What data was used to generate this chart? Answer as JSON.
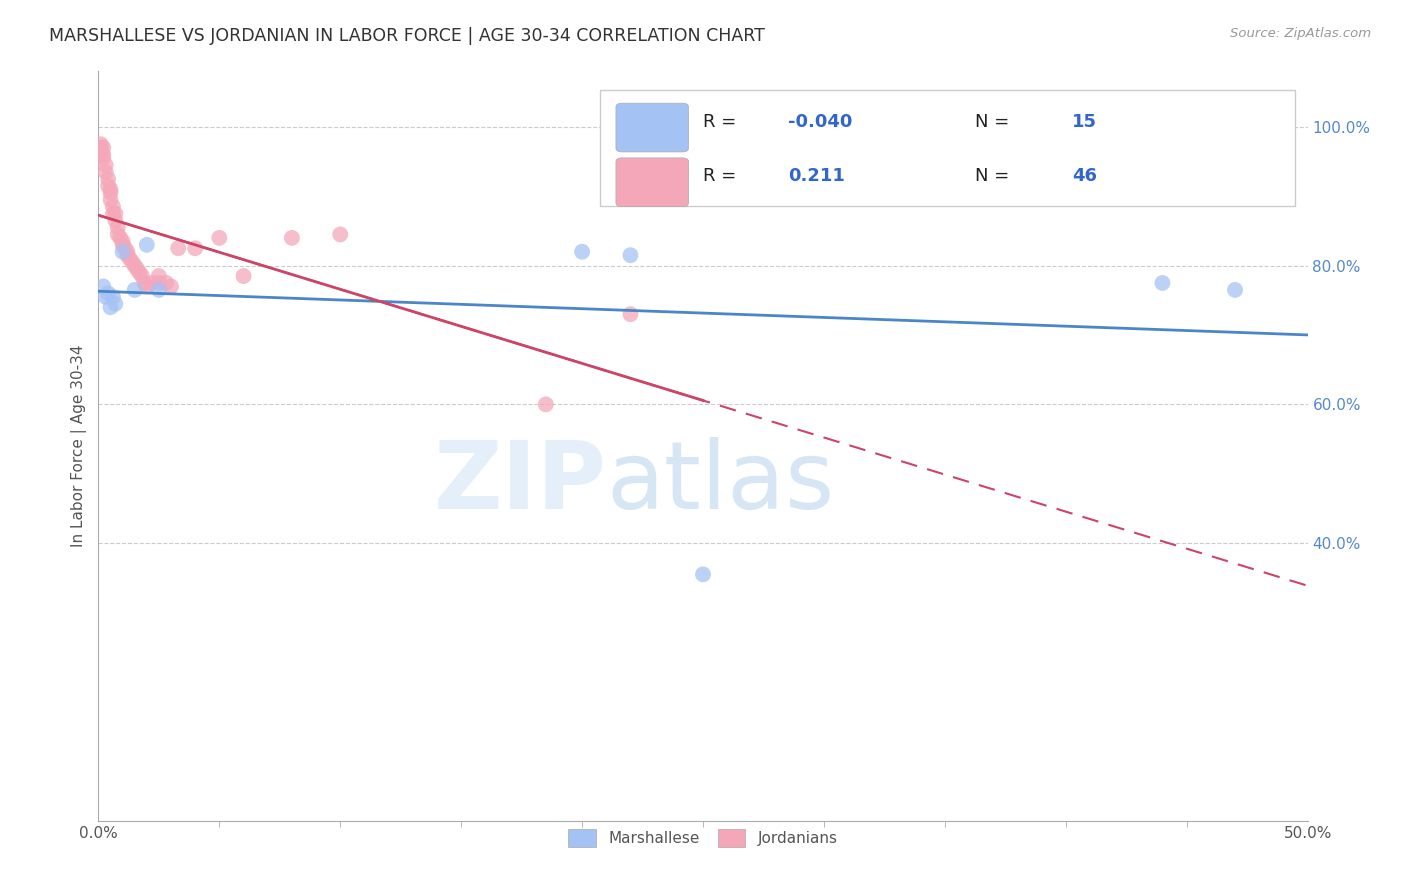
{
  "title": "MARSHALLESE VS JORDANIAN IN LABOR FORCE | AGE 30-34 CORRELATION CHART",
  "source": "Source: ZipAtlas.com",
  "ylabel": "In Labor Force | Age 30-34",
  "xlim": [
    0.0,
    0.5
  ],
  "ylim": [
    0.0,
    1.08
  ],
  "legend_labels": [
    "Marshallese",
    "Jordanians"
  ],
  "legend_r": [
    "-0.040",
    "0.211"
  ],
  "legend_n": [
    "15",
    "46"
  ],
  "blue_color": "#a4c2f4",
  "pink_color": "#f4a7b9",
  "blue_line_color": "#4a86c8",
  "pink_line_color": "#cc4466",
  "blue_scatter_x": [
    0.002,
    0.003,
    0.004,
    0.005,
    0.006,
    0.007,
    0.01,
    0.015,
    0.02,
    0.025,
    0.2,
    0.25,
    0.44,
    0.47,
    0.22
  ],
  "blue_scatter_y": [
    0.77,
    0.755,
    0.76,
    0.74,
    0.755,
    0.745,
    0.82,
    0.765,
    0.83,
    0.765,
    0.82,
    0.355,
    0.775,
    0.765,
    0.815
  ],
  "pink_scatter_x": [
    0.001,
    0.001,
    0.001,
    0.002,
    0.002,
    0.002,
    0.003,
    0.003,
    0.004,
    0.004,
    0.005,
    0.005,
    0.005,
    0.006,
    0.006,
    0.007,
    0.007,
    0.008,
    0.008,
    0.009,
    0.01,
    0.01,
    0.011,
    0.012,
    0.012,
    0.013,
    0.014,
    0.015,
    0.016,
    0.017,
    0.018,
    0.019,
    0.02,
    0.022,
    0.025,
    0.025,
    0.028,
    0.03,
    0.033,
    0.04,
    0.05,
    0.06,
    0.08,
    0.1,
    0.185,
    0.22
  ],
  "pink_scatter_y": [
    0.975,
    0.97,
    0.965,
    0.96,
    0.955,
    0.97,
    0.945,
    0.935,
    0.925,
    0.915,
    0.905,
    0.91,
    0.895,
    0.885,
    0.875,
    0.875,
    0.865,
    0.855,
    0.845,
    0.84,
    0.83,
    0.835,
    0.825,
    0.815,
    0.82,
    0.81,
    0.805,
    0.8,
    0.795,
    0.79,
    0.785,
    0.775,
    0.77,
    0.775,
    0.775,
    0.785,
    0.775,
    0.77,
    0.825,
    0.825,
    0.84,
    0.785,
    0.84,
    0.845,
    0.6,
    0.73
  ],
  "watermark_zip": "ZIP",
  "watermark_atlas": "atlas",
  "background_color": "#ffffff",
  "grid_color": "#cccccc",
  "ytick_vals": [
    0.4,
    0.6,
    0.8,
    1.0
  ],
  "ytick_labels": [
    "40.0%",
    "60.0%",
    "80.0%",
    "100.0%"
  ]
}
